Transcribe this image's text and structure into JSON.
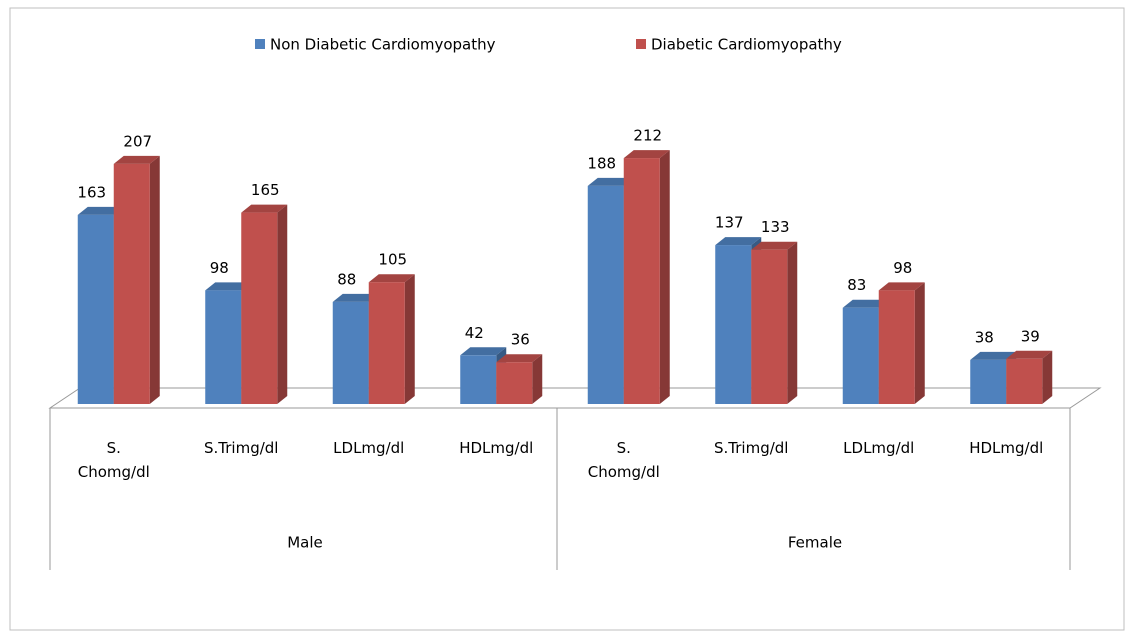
{
  "chart_data": {
    "type": "bar3d",
    "groups": [
      "Male",
      "Female"
    ],
    "categories": [
      "S.\nChomg/dl",
      "S.Trimg/dl",
      "LDLmg/dl",
      "HDLmg/dl",
      "S.\nChomg/dl",
      "S.Trimg/dl",
      "LDLmg/dl",
      "HDLmg/dl"
    ],
    "series": [
      {
        "name": "Non Diabetic Cardiomyopathy",
        "color": "#4f81bd",
        "values": [
          163,
          98,
          88,
          42,
          188,
          137,
          83,
          38
        ]
      },
      {
        "name": "Diabetic Cardiomyopathy",
        "color": "#c0504d",
        "values": [
          207,
          165,
          105,
          36,
          212,
          133,
          98,
          39
        ]
      }
    ],
    "legend": "top"
  }
}
